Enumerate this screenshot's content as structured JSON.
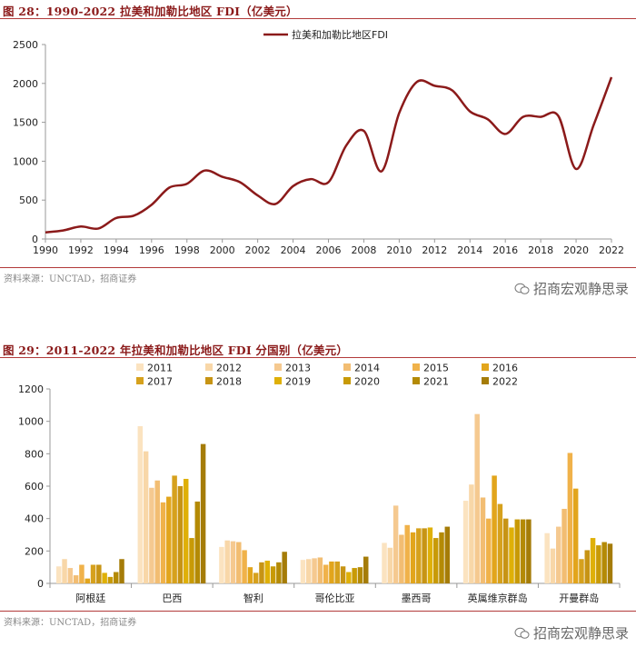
{
  "figures": [
    {
      "title": "图 28：1990-2022 拉美和加勒比地区 FDI（亿美元）",
      "source": "资料来源：UNCTAD，招商证券",
      "watermark": "招商宏观静思录"
    },
    {
      "title": "图 29：2011-2022 年拉美和加勒比地区 FDI 分国别（亿美元）",
      "source": "资料来源：UNCTAD，招商证券",
      "watermark": "招商宏观静思录"
    }
  ],
  "colors": {
    "line": "#8b1a1a",
    "title": "#8b1a1a",
    "years": [
      "#fbe3c0",
      "#f8d7a8",
      "#f5c990",
      "#f2bd72",
      "#f0b24a",
      "#e2a51c",
      "#d6a11d",
      "#c79414",
      "#dfb007",
      "#c89a06",
      "#b48a05",
      "#a57c08"
    ]
  },
  "chart_data": [
    {
      "type": "line",
      "title": "",
      "legend": [
        "拉美和加勒比地区FDI"
      ],
      "x": [
        1990,
        1991,
        1992,
        1993,
        1994,
        1995,
        1996,
        1997,
        1998,
        1999,
        2000,
        2001,
        2002,
        2003,
        2004,
        2005,
        2006,
        2007,
        2008,
        2009,
        2010,
        2011,
        2012,
        2013,
        2014,
        2015,
        2016,
        2017,
        2018,
        2019,
        2020,
        2021,
        2022
      ],
      "series": [
        {
          "name": "拉美和加勒比地区FDI",
          "values": [
            85,
            110,
            160,
            135,
            270,
            300,
            440,
            660,
            710,
            880,
            800,
            730,
            560,
            450,
            680,
            770,
            730,
            1200,
            1390,
            870,
            1620,
            2020,
            1970,
            1910,
            1640,
            1540,
            1350,
            1570,
            1570,
            1580,
            900,
            1470,
            2080
          ]
        }
      ],
      "xticks": [
        "1990",
        "1992",
        "1994",
        "1996",
        "1998",
        "2000",
        "2002",
        "2004",
        "2006",
        "2008",
        "2010",
        "2012",
        "2014",
        "2016",
        "2018",
        "2020",
        "2022"
      ],
      "yticks": [
        "0",
        "500",
        "1000",
        "1500",
        "2000",
        "2500"
      ],
      "ylim": [
        0,
        2500
      ],
      "xlabel": "",
      "ylabel": ""
    },
    {
      "type": "bar",
      "categories": [
        "阿根廷",
        "巴西",
        "智利",
        "哥伦比亚",
        "墨西哥",
        "英属维京群岛",
        "开曼群岛"
      ],
      "legend": [
        "2011",
        "2012",
        "2013",
        "2014",
        "2015",
        "2016",
        "2017",
        "2018",
        "2019",
        "2020",
        "2021",
        "2022"
      ],
      "series": [
        {
          "name": "2011",
          "values": [
            105,
            970,
            225,
            145,
            250,
            510,
            310
          ]
        },
        {
          "name": "2012",
          "values": [
            150,
            815,
            265,
            150,
            220,
            610,
            215
          ]
        },
        {
          "name": "2013",
          "values": [
            95,
            590,
            260,
            155,
            480,
            1045,
            350
          ]
        },
        {
          "name": "2014",
          "values": [
            50,
            635,
            255,
            160,
            300,
            530,
            460
          ]
        },
        {
          "name": "2015",
          "values": [
            115,
            500,
            205,
            115,
            360,
            400,
            805
          ]
        },
        {
          "name": "2016",
          "values": [
            30,
            535,
            100,
            135,
            315,
            665,
            585
          ]
        },
        {
          "name": "2017",
          "values": [
            115,
            665,
            65,
            135,
            340,
            490,
            150
          ]
        },
        {
          "name": "2018",
          "values": [
            115,
            600,
            130,
            105,
            340,
            400,
            205
          ]
        },
        {
          "name": "2019",
          "values": [
            65,
            645,
            140,
            70,
            345,
            345,
            280
          ]
        },
        {
          "name": "2020",
          "values": [
            40,
            280,
            105,
            95,
            280,
            395,
            235
          ]
        },
        {
          "name": "2021",
          "values": [
            70,
            505,
            130,
            100,
            315,
            395,
            255
          ]
        },
        {
          "name": "2022",
          "values": [
            150,
            860,
            195,
            165,
            350,
            395,
            245
          ]
        }
      ],
      "yticks": [
        "0",
        "200",
        "400",
        "600",
        "800",
        "1000",
        "1200"
      ],
      "ylim": [
        0,
        1200
      ],
      "xlabel": "",
      "ylabel": ""
    }
  ]
}
